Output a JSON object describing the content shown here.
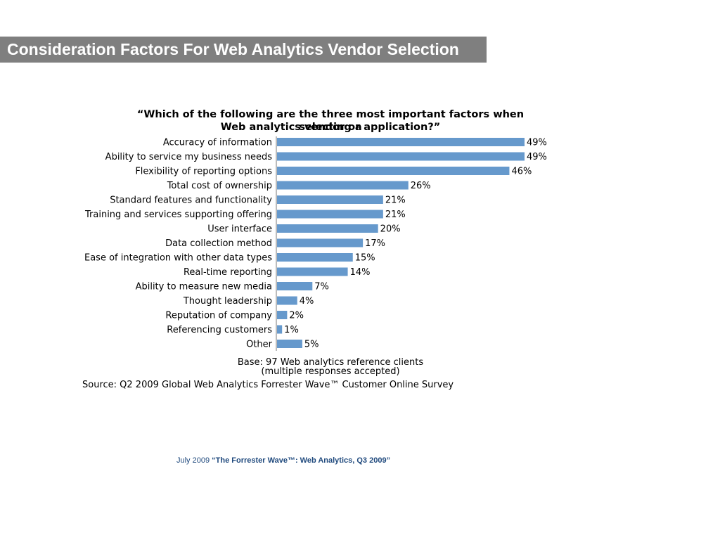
{
  "header": {
    "title": "Consideration Factors For Web Analytics Vendor Selection"
  },
  "chart_data": {
    "type": "bar",
    "orientation": "horizontal",
    "title_line1": "“Which of the following are the three most important factors when selecting a",
    "title_line2": "Web analytics vendor or application?”",
    "categories": [
      "Accuracy of information",
      "Ability to service my business needs",
      "Flexibility of reporting options",
      "Total cost of ownership",
      "Standard features and functionality",
      "Training and services supporting offering",
      "User interface",
      "Data collection method",
      "Ease of integration with other data types",
      "Real-time reporting",
      "Ability to measure new media",
      "Thought leadership",
      "Reputation of company",
      "Referencing customers",
      "Other"
    ],
    "values": [
      49,
      49,
      46,
      26,
      21,
      21,
      20,
      17,
      15,
      14,
      7,
      4,
      2,
      1,
      5
    ],
    "value_labels": [
      "49%",
      "49%",
      "46%",
      "26%",
      "21%",
      "21%",
      "20%",
      "17%",
      "15%",
      "14%",
      "7%",
      "4%",
      "2%",
      "1%",
      "5%"
    ],
    "bar_color": "#6699cc",
    "xlim": [
      0,
      50
    ],
    "grid": false,
    "legend": "none",
    "base_line1": "Base: 97 Web analytics reference clients",
    "base_line2": "(multiple responses accepted)",
    "source": "Source: Q2 2009 Global Web Analytics Forrester Wave™ Customer Online Survey"
  },
  "footer": {
    "date": "July 2009 ",
    "report_title": "“The Forrester Wave™: Web Analytics, Q3 2009”"
  }
}
